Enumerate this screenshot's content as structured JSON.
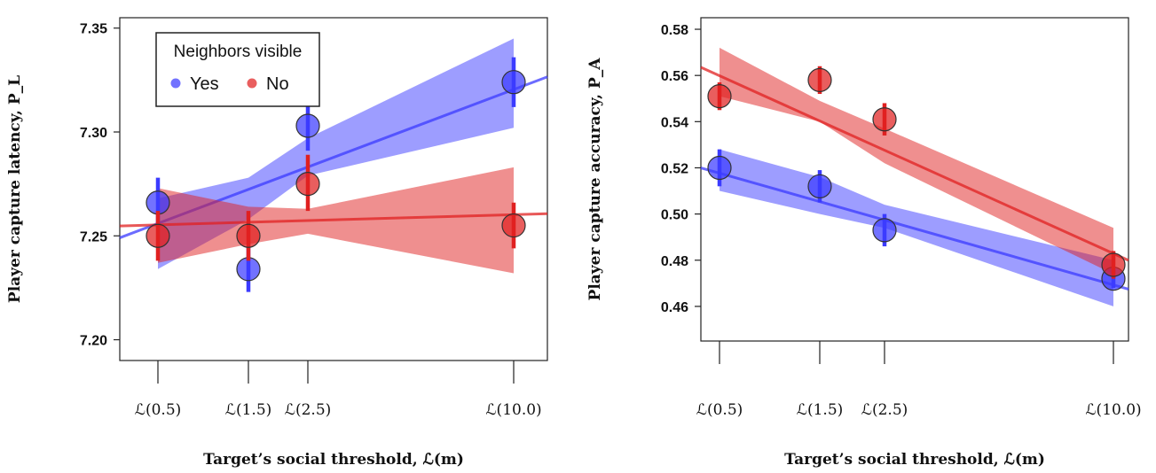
{
  "chart_data": [
    {
      "type": "scatter",
      "xlabel": "Target’s social threshold, ℒ(m)",
      "ylabel": "Player capture latency, P_L",
      "categories": [
        "ℒ(0.5)",
        "ℒ(1.5)",
        "ℒ(2.5)",
        "ℒ(10.0)"
      ],
      "x": [
        0.5,
        1.5,
        2.5,
        10.0
      ],
      "xlim": [
        0.5,
        10.0
      ],
      "yticks": [
        "7.20",
        "7.25",
        "7.30",
        "7.35"
      ],
      "ylim": [
        7.19,
        7.355
      ],
      "grid": false,
      "legend": {
        "title": "Neighbors visible",
        "placement": "top-left"
      },
      "series": [
        {
          "name": "Yes",
          "color": "#3b3bff",
          "values": [
            7.266,
            7.234,
            7.303,
            7.324
          ],
          "err_low": [
            7.254,
            7.223,
            7.291,
            7.312
          ],
          "err_high": [
            7.278,
            7.245,
            7.315,
            7.336
          ],
          "fit": {
            "y_at_xmin": 7.252,
            "y_at_xmax": 7.318
          },
          "band": {
            "lower": [
              7.234,
              7.258,
              7.279,
              7.302
            ],
            "upper": [
              7.268,
              7.278,
              7.297,
              7.345
            ]
          }
        },
        {
          "name": "No",
          "color": "#e02020",
          "values": [
            7.25,
            7.25,
            7.275,
            7.255
          ],
          "err_low": [
            7.238,
            7.238,
            7.262,
            7.244
          ],
          "err_high": [
            7.262,
            7.262,
            7.289,
            7.266
          ],
          "fit": {
            "y_at_xmin": 7.255,
            "y_at_xmax": 7.26
          },
          "band": {
            "lower": [
              7.237,
              7.246,
              7.251,
              7.232
            ],
            "upper": [
              7.273,
              7.264,
              7.263,
              7.283
            ]
          }
        }
      ]
    },
    {
      "type": "scatter",
      "xlabel": "Target’s social threshold, ℒ(m)",
      "ylabel": "Player capture accuracy, P_A",
      "categories": [
        "ℒ(0.5)",
        "ℒ(1.5)",
        "ℒ(2.5)",
        "ℒ(10.0)"
      ],
      "x": [
        0.5,
        1.5,
        2.5,
        10.0
      ],
      "xlim": [
        0.5,
        10.0
      ],
      "yticks": [
        "0.46",
        "0.48",
        "0.50",
        "0.52",
        "0.54",
        "0.56",
        "0.58"
      ],
      "ylim": [
        0.445,
        0.585
      ],
      "grid": false,
      "series": [
        {
          "name": "Yes",
          "color": "#3b3bff",
          "values": [
            0.52,
            0.512,
            0.493,
            0.472
          ],
          "err_low": [
            0.512,
            0.505,
            0.486,
            0.468
          ],
          "err_high": [
            0.528,
            0.519,
            0.5,
            0.476
          ],
          "fit": {
            "y_at_xmin": 0.519,
            "y_at_xmax": 0.47
          },
          "band": {
            "lower": [
              0.51,
              0.5,
              0.494,
              0.46
            ],
            "upper": [
              0.528,
              0.516,
              0.504,
              0.48
            ]
          }
        },
        {
          "name": "No",
          "color": "#e02020",
          "values": [
            0.551,
            0.558,
            0.541,
            0.478
          ],
          "err_low": [
            0.545,
            0.552,
            0.534,
            0.472
          ],
          "err_high": [
            0.557,
            0.564,
            0.548,
            0.484
          ],
          "fit": {
            "y_at_xmin": 0.562,
            "y_at_xmax": 0.484
          },
          "band": {
            "lower": [
              0.551,
              0.54,
              0.522,
              0.474
            ],
            "upper": [
              0.572,
              0.549,
              0.537,
              0.494
            ]
          }
        }
      ]
    }
  ]
}
